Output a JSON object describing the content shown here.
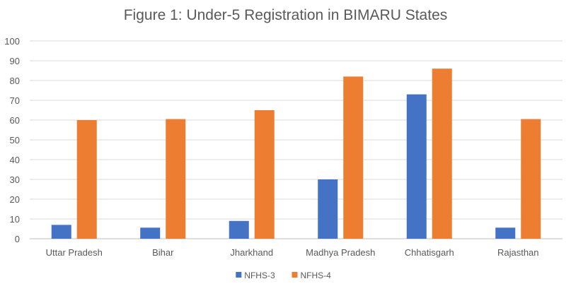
{
  "chart_data": {
    "type": "bar",
    "title": "Figure 1: Under-5 Registration in BIMARU States",
    "categories": [
      "Uttar Pradesh",
      "Bihar",
      "Jharkhand",
      "Madhya Pradesh",
      "Chhatisgarh",
      "Rajasthan"
    ],
    "series": [
      {
        "name": "NFHS-3",
        "color": "#4472C4",
        "values": [
          7,
          5.6,
          9,
          30,
          73,
          5.6
        ]
      },
      {
        "name": "NFHS-4",
        "color": "#ED7D31",
        "values": [
          60,
          60.5,
          65,
          82,
          86,
          60.5
        ]
      }
    ],
    "ylim": [
      0,
      100
    ],
    "yticks": [
      0,
      10,
      20,
      30,
      40,
      50,
      60,
      70,
      80,
      90,
      100
    ],
    "grid": true,
    "legend_position": "bottom"
  }
}
